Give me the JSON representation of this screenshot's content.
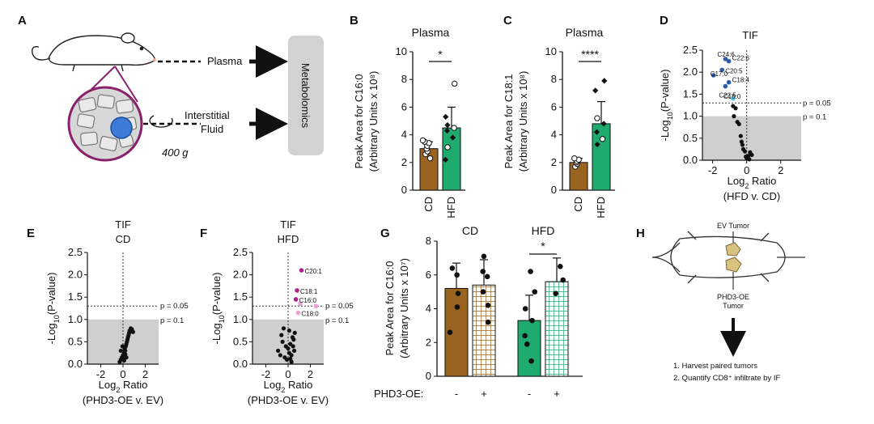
{
  "colors": {
    "cd": "#9b6320",
    "hfd": "#1faa6e",
    "gray_region": "#cfcfcf",
    "fat_blue": "#2e5ba8",
    "light_blue": "#5cc8e6",
    "magenta": "#b0208a",
    "pink": "#e7a3d4",
    "tumor": "#d9c27f"
  },
  "panelA": {
    "letter": "A",
    "plasma": "Plasma",
    "interstitial_1": "Interstitial",
    "interstitial_2": "Fluid",
    "spin": "400 g",
    "box": "Metabolomics"
  },
  "panelH": {
    "letter": "H",
    "ev_tumor": "EV Tumor",
    "phd_tumor_1": "PHD3-OE",
    "phd_tumor_2": "Tumor",
    "step1": "1. Harvest paired tumors",
    "step2": "2. Quantify CD8⁺ infiltrate by IF"
  },
  "chart_data": [
    {
      "panel": "B",
      "type": "bar",
      "title": "Plasma",
      "ylabel_1": "Peak Area for C16:0",
      "ylabel_2": "(Arbitrary Units x 10⁸)",
      "ylim": [
        0,
        10
      ],
      "yticks": [
        "0",
        "2",
        "4",
        "6",
        "8",
        "10"
      ],
      "categories": [
        "CD",
        "HFD"
      ],
      "values": [
        3.0,
        4.5
      ],
      "errors": [
        0.5,
        1.5
      ],
      "significance": "*",
      "points": [
        [
          2.3,
          2.6,
          2.8,
          3.0,
          3.2,
          3.4,
          3.5,
          3.6
        ],
        [
          2.2,
          3.1,
          3.8,
          4.3,
          4.5,
          4.7,
          5.3,
          7.7
        ]
      ]
    },
    {
      "panel": "C",
      "type": "bar",
      "title": "Plasma",
      "ylabel_1": "Peak Area for C18:1",
      "ylabel_2": "(Arbitrary Units x 10⁸)",
      "ylim": [
        0,
        10
      ],
      "yticks": [
        "0",
        "2",
        "4",
        "6",
        "8",
        "10"
      ],
      "categories": [
        "CD",
        "HFD"
      ],
      "values": [
        2.0,
        4.8
      ],
      "errors": [
        0.3,
        1.6
      ],
      "significance": "****",
      "points": [
        [
          1.7,
          1.9,
          2.0,
          2.1,
          2.2,
          2.3
        ],
        [
          3.3,
          3.7,
          4.2,
          4.8,
          5.2,
          7.2,
          7.9
        ]
      ]
    },
    {
      "panel": "D",
      "type": "scatter",
      "title": "TIF",
      "xlabel_1": "Ratio",
      "xlabel_pre": "Log",
      "xlabel_sub": "2",
      "xlabel_2": "(HFD v. CD)",
      "ylabel": "(P-value)",
      "ylabel_pre": "-Log",
      "ylabel_sub": "10",
      "xlim": [
        -2.6,
        3.2
      ],
      "ylim": [
        0,
        2.5
      ],
      "xticks": [
        "-2",
        "0",
        "2"
      ],
      "yticks": [
        "0.0",
        "0.5",
        "1.0",
        "1.5",
        "2.0",
        "2.5"
      ],
      "thresholds": [
        {
          "y": 1.3,
          "label": "p = 0.05"
        },
        {
          "y": 1.0,
          "label": "p = 0.1"
        }
      ],
      "labeled_points": [
        {
          "x": -1.25,
          "y": 2.3,
          "label": "C24:6",
          "class": "blue"
        },
        {
          "x": -1.05,
          "y": 2.25,
          "label": "C22:6",
          "class": "blue"
        },
        {
          "x": -1.45,
          "y": 2.05,
          "label": "C20:5",
          "class": "blue"
        },
        {
          "x": -1.95,
          "y": 1.93,
          "label": "C17:0",
          "class": "blue"
        },
        {
          "x": -1.05,
          "y": 1.77,
          "label": "C18:4",
          "class": "blue"
        },
        {
          "x": -1.25,
          "y": 1.68,
          "label": "C22:5",
          "class": "blue"
        },
        {
          "x": -0.8,
          "y": 1.4,
          "label": "C16:0",
          "class": "lightblue"
        }
      ],
      "points": [
        [
          -0.8,
          1.23
        ],
        [
          -0.65,
          1.18
        ],
        [
          -0.75,
          1.0
        ],
        [
          -0.55,
          0.87
        ],
        [
          -0.45,
          0.82
        ],
        [
          -0.35,
          0.55
        ],
        [
          -0.3,
          0.42
        ],
        [
          -0.25,
          0.35
        ],
        [
          -0.2,
          0.25
        ],
        [
          -0.1,
          0.2
        ],
        [
          0.0,
          0.05
        ],
        [
          0.1,
          0.1
        ],
        [
          0.2,
          0.18
        ],
        [
          0.3,
          0.12
        ],
        [
          0.15,
          0.02
        ],
        [
          -0.05,
          0.08
        ]
      ]
    },
    {
      "panel": "E",
      "type": "scatter",
      "title_1": "TIF",
      "title_2": "CD",
      "xlabel_1": "Ratio",
      "xlabel_pre": "Log",
      "xlabel_sub": "2",
      "xlabel_2": "(PHD3-OE v. EV)",
      "ylabel": "(P-value)",
      "ylabel_pre": "-Log",
      "ylabel_sub": "10",
      "xlim": [
        -3.2,
        3.2
      ],
      "ylim": [
        0,
        2.5
      ],
      "xticks": [
        "-2",
        "0",
        "2"
      ],
      "yticks": [
        "0.0",
        "0.5",
        "1.0",
        "1.5",
        "2.0",
        "2.5"
      ],
      "thresholds": [
        {
          "y": 1.3,
          "label": "p = 0.05"
        },
        {
          "y": 1.0,
          "label": "p = 0.1"
        }
      ],
      "labeled_points": [],
      "points": [
        [
          -0.3,
          0.05
        ],
        [
          -0.2,
          0.1
        ],
        [
          -0.1,
          0.15
        ],
        [
          0.0,
          0.2
        ],
        [
          0.1,
          0.25
        ],
        [
          0.2,
          0.3
        ],
        [
          0.15,
          0.35
        ],
        [
          0.25,
          0.4
        ],
        [
          0.3,
          0.45
        ],
        [
          0.35,
          0.5
        ],
        [
          0.4,
          0.55
        ],
        [
          0.45,
          0.6
        ],
        [
          0.5,
          0.65
        ],
        [
          0.55,
          0.7
        ],
        [
          0.6,
          0.75
        ],
        [
          0.7,
          0.8
        ],
        [
          0.8,
          0.78
        ],
        [
          0.9,
          0.72
        ],
        [
          -0.2,
          0.3
        ],
        [
          -0.05,
          0.4
        ],
        [
          0.0,
          0.12
        ],
        [
          0.1,
          0.08
        ],
        [
          0.2,
          0.22
        ],
        [
          0.3,
          0.15
        ]
      ]
    },
    {
      "panel": "F",
      "type": "scatter",
      "title_1": "TIF",
      "title_2": "HFD",
      "xlabel_1": "Ratio",
      "xlabel_pre": "Log",
      "xlabel_sub": "2",
      "xlabel_2": "(PHD3-OE v. EV)",
      "ylabel": "(P-value)",
      "ylabel_pre": "-Log",
      "ylabel_sub": "10",
      "xlim": [
        -3.2,
        3.2
      ],
      "ylim": [
        0,
        2.5
      ],
      "xticks": [
        "-2",
        "0",
        "2"
      ],
      "yticks": [
        "0.0",
        "0.5",
        "1.0",
        "1.5",
        "2.0",
        "2.5"
      ],
      "thresholds": [
        {
          "y": 1.3,
          "label": "p = 0.05"
        },
        {
          "y": 1.0,
          "label": "p = 0.1"
        }
      ],
      "labeled_points": [
        {
          "x": 1.2,
          "y": 2.1,
          "label": "C20:1",
          "class": "magenta"
        },
        {
          "x": 0.8,
          "y": 1.65,
          "label": "C18:1",
          "class": "magenta"
        },
        {
          "x": 0.7,
          "y": 1.45,
          "label": "C16:0",
          "class": "magenta"
        },
        {
          "x": 0.9,
          "y": 1.15,
          "label": "C18:0",
          "class": "pink"
        }
      ],
      "extra_colored": [
        {
          "x": 1.1,
          "y": 1.35,
          "class": "pink"
        },
        {
          "x": 2.5,
          "y": 1.3,
          "class": "pink"
        }
      ],
      "points": [
        [
          -0.9,
          0.3
        ],
        [
          -0.7,
          0.2
        ],
        [
          -0.5,
          0.5
        ],
        [
          -0.3,
          0.15
        ],
        [
          -0.2,
          0.4
        ],
        [
          -0.1,
          0.1
        ],
        [
          0.0,
          0.35
        ],
        [
          0.1,
          0.25
        ],
        [
          0.2,
          0.45
        ],
        [
          0.3,
          0.2
        ],
        [
          0.4,
          0.6
        ],
        [
          0.5,
          0.55
        ],
        [
          0.55,
          0.3
        ],
        [
          0.6,
          0.7
        ],
        [
          0.3,
          0.05
        ],
        [
          -0.4,
          0.8
        ],
        [
          -0.6,
          0.65
        ],
        [
          0.1,
          0.75
        ],
        [
          0.2,
          0.12
        ],
        [
          0.45,
          0.4
        ]
      ]
    },
    {
      "panel": "G",
      "type": "bar",
      "ylabel_1": "Peak Area for C16:0",
      "ylabel_2": "(Arbitrary Units x 10⁷)",
      "ylim": [
        0,
        8
      ],
      "yticks": [
        "0",
        "2",
        "4",
        "6",
        "8"
      ],
      "groups": [
        "CD",
        "HFD"
      ],
      "row_label": "PHD3-OE:",
      "row_values": [
        "-",
        "+",
        "-",
        "+"
      ],
      "significance": "*",
      "values": [
        5.2,
        5.4,
        3.3,
        5.6
      ],
      "errors": [
        1.5,
        1.5,
        1.5,
        1.4
      ],
      "points": [
        [
          2.6,
          4.1,
          4.9,
          6.0,
          6.4
        ],
        [
          3.2,
          4.2,
          5.0,
          5.9,
          6.2,
          7.1
        ],
        [
          0.9,
          1.9,
          2.4,
          3.3,
          4.0,
          5.0,
          6.2
        ],
        [
          4.9,
          5.7,
          6.5
        ]
      ]
    }
  ]
}
